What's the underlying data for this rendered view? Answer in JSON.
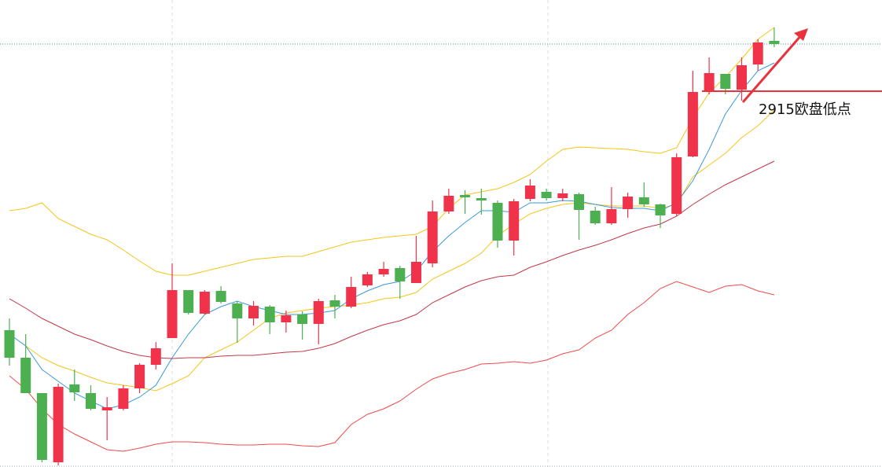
{
  "chart_data": {
    "type": "candlestick",
    "ylim": [
      2867.2,
      2926.6
    ],
    "up_color": "#f0334b",
    "down_color": "#4caf50",
    "open": [
      2884.6,
      2881.1,
      2876.6,
      2867.8,
      2877.7,
      2876.6,
      2874.4,
      2874.6,
      2877.2,
      2880.2,
      2883.6,
      2889.7,
      2886.7,
      2889.6,
      2888.0,
      2886.1,
      2887.6,
      2885.6,
      2886.6,
      2885.4,
      2888.4,
      2887.6,
      2890.3,
      2891.7,
      2892.5,
      2890.6,
      2893.1,
      2899.7,
      2901.8,
      2901.4,
      2900.8,
      2896.0,
      2901.3,
      2902.2,
      2901.4,
      2901.9,
      2899.8,
      2898.2,
      2900.0,
      2901.5,
      2900.6,
      2899.4,
      2906.7,
      2915.1,
      2917.2,
      2915.2,
      2918.4,
      2921.4
    ],
    "high": [
      2886.1,
      2884.1,
      2876.6,
      2877.8,
      2879.6,
      2877.6,
      2876.1,
      2877.6,
      2880.4,
      2883.1,
      2893.1,
      2889.7,
      2889.7,
      2890.2,
      2888.3,
      2888.3,
      2887.8,
      2887.1,
      2887.0,
      2888.6,
      2889.1,
      2891.4,
      2892.0,
      2893.3,
      2892.8,
      2896.6,
      2901.1,
      2902.6,
      2902.4,
      2902.6,
      2901.1,
      2901.3,
      2903.8,
      2902.6,
      2902.6,
      2902.1,
      2900.3,
      2902.8,
      2902.1,
      2903.4,
      2900.7,
      2907.1,
      2917.6,
      2919.3,
      2917.2,
      2919.3,
      2921.6,
      2923.1
    ],
    "low": [
      2880.1,
      2876.6,
      2867.8,
      2867.4,
      2875.6,
      2874.4,
      2870.6,
      2874.4,
      2876.6,
      2879.6,
      2883.6,
      2886.6,
      2886.6,
      2888.0,
      2883.0,
      2885.2,
      2884.1,
      2884.3,
      2883.4,
      2882.8,
      2886.1,
      2887.4,
      2890.1,
      2891.4,
      2888.6,
      2890.6,
      2892.6,
      2899.4,
      2899.4,
      2899.3,
      2895.1,
      2894.1,
      2901.0,
      2901.1,
      2901.0,
      2896.1,
      2898.0,
      2898.0,
      2898.9,
      2900.3,
      2897.6,
      2899.1,
      2906.6,
      2914.6,
      2914.6,
      2913.8,
      2917.6,
      2920.6
    ],
    "close": [
      2881.1,
      2876.6,
      2868.1,
      2877.4,
      2876.7,
      2874.6,
      2874.8,
      2877.2,
      2880.2,
      2882.3,
      2889.7,
      2886.8,
      2889.5,
      2888.2,
      2886.1,
      2887.7,
      2885.6,
      2886.5,
      2885.4,
      2888.3,
      2887.6,
      2890.1,
      2891.7,
      2892.4,
      2890.8,
      2893.3,
      2899.7,
      2901.7,
      2901.5,
      2901.1,
      2896.0,
      2901.0,
      2903.0,
      2901.4,
      2902.0,
      2899.9,
      2898.2,
      2900.0,
      2901.6,
      2900.6,
      2899.2,
      2906.6,
      2914.9,
      2917.3,
      2915.3,
      2918.3,
      2921.2,
      2921.0
    ],
    "overlays": [
      {
        "color": "#f5c518",
        "values": [
          2899.8,
          2900.1,
          2900.8,
          2898.8,
          2897.8,
          2896.8,
          2896.1,
          2894.8,
          2893.4,
          2892.1,
          2891.6,
          2891.6,
          2892.1,
          2892.6,
          2893.1,
          2893.6,
          2893.8,
          2894.0,
          2894.0,
          2894.6,
          2895.2,
          2895.8,
          2896.1,
          2896.4,
          2896.6,
          2896.8,
          2897.8,
          2900.1,
          2901.8,
          2902.2,
          2902.6,
          2903.4,
          2904.4,
          2906.1,
          2907.6,
          2907.9,
          2907.8,
          2907.7,
          2907.6,
          2907.3,
          2907.1,
          2907.8,
          2911.6,
          2914.8,
          2916.8,
          2919.1,
          2921.6,
          2923.1
        ]
      },
      {
        "color": "#f5c518",
        "values": [
          null,
          2882.6,
          2881.1,
          2880.1,
          2879.4,
          2878.6,
          2877.9,
          2877.6,
          2877.3,
          2876.9,
          2877.8,
          2878.8,
          2881.1,
          2882.1,
          2883.1,
          2884.6,
          2886.1,
          2886.8,
          2887.1,
          2887.4,
          2887.6,
          2887.8,
          2888.1,
          2888.6,
          2888.8,
          2889.4,
          2891.1,
          2892.1,
          2893.1,
          2894.4,
          2896.6,
          2898.1,
          2899.4,
          2900.1,
          2900.6,
          2900.8,
          2900.6,
          2900.4,
          2900.4,
          2900.4,
          2900.1,
          2900.6,
          2904.1,
          2905.6,
          2907.1,
          2909.1,
          2910.6,
          2912.6
        ]
      },
      {
        "color": "#3a9ad9",
        "values": [
          2884.1,
          2882.6,
          2879.6,
          2878.1,
          2876.6,
          2875.6,
          2874.6,
          2875.1,
          2876.1,
          2877.6,
          2881.1,
          2884.1,
          2886.6,
          2887.6,
          2888.3,
          2887.6,
          2887.1,
          2886.6,
          2886.6,
          2886.8,
          2887.1,
          2888.6,
          2889.6,
          2890.4,
          2890.8,
          2892.1,
          2894.6,
          2896.6,
          2898.3,
          2899.8,
          2899.8,
          2899.6,
          2900.8,
          2900.8,
          2901.1,
          2901.0,
          2900.6,
          2900.2,
          2900.1,
          2900.1,
          2899.8,
          2900.8,
          2903.6,
          2907.6,
          2912.1,
          2915.1,
          2917.6,
          2918.6
        ]
      },
      {
        "color": "#c0394a",
        "values": [
          2888.6,
          2887.4,
          2886.1,
          2885.1,
          2884.1,
          2883.4,
          2882.6,
          2881.9,
          2881.4,
          2881.1,
          2881.0,
          2881.1,
          2881.1,
          2881.3,
          2881.4,
          2881.4,
          2881.6,
          2881.8,
          2881.9,
          2882.3,
          2882.9,
          2883.8,
          2884.6,
          2885.3,
          2885.8,
          2886.6,
          2888.1,
          2889.1,
          2890.1,
          2890.9,
          2891.4,
          2891.6,
          2892.6,
          2893.3,
          2894.1,
          2894.8,
          2895.4,
          2896.1,
          2896.9,
          2897.6,
          2898.1,
          2899.1,
          2900.6,
          2901.9,
          2903.1,
          2904.1,
          2905.1,
          2906.1
        ]
      },
      {
        "color": "#ef4b4b",
        "values": [
          2878.8,
          2877.1,
          2874.6,
          2872.6,
          2871.4,
          2870.4,
          2869.4,
          2869.2,
          2869.6,
          2870.1,
          2870.4,
          2870.4,
          2870.3,
          2870.1,
          2870.0,
          2870.0,
          2870.1,
          2870.1,
          2869.9,
          2869.8,
          2870.3,
          2872.6,
          2873.9,
          2874.6,
          2875.6,
          2877.1,
          2878.4,
          2879.1,
          2879.6,
          2880.3,
          2880.4,
          2880.6,
          2880.4,
          2880.8,
          2881.6,
          2882.1,
          2883.6,
          2884.6,
          2886.6,
          2888.1,
          2889.9,
          2890.8,
          2890.1,
          2889.4,
          2890.2,
          2890.4,
          2889.6,
          2889.1
        ]
      }
    ],
    "annotation": {
      "text": "2915欧盘低点",
      "value": 2915,
      "color": "#e8323c"
    }
  }
}
